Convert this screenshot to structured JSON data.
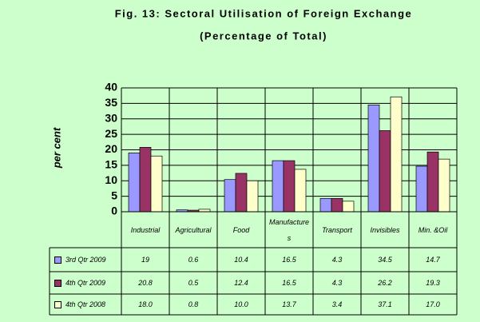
{
  "chart_data": {
    "type": "bar",
    "title": "Fig. 13: Sectoral Utilisation of Foreign Exchange",
    "subtitle": "(Percentage of Total)",
    "y_label": "per cent",
    "categories": [
      "Industrial",
      "Agricultural",
      "Food",
      "Manufactures",
      "Transport",
      "Invisibles",
      "Min. &Oil"
    ],
    "series": [
      {
        "name": "3rd Qtr 2009",
        "color": "#9999ff",
        "values": [
          19,
          0.6,
          10.4,
          16.5,
          4.3,
          34.5,
          14.7
        ]
      },
      {
        "name": "4th Qtr 2009",
        "color": "#993366",
        "values": [
          20.8,
          0.5,
          12.4,
          16.5,
          4.3,
          26.2,
          19.3
        ]
      },
      {
        "name": "4th Qtr 2008",
        "color": "#ffffcc",
        "values": [
          18,
          0.8,
          10,
          13.7,
          3.4,
          37.1,
          17
        ],
        "value_labels": [
          "18.0",
          "0.8",
          "10.0",
          "13.7",
          "3.4",
          "37.1",
          "17.0"
        ]
      }
    ],
    "ylim": [
      0,
      40
    ],
    "yticks": [
      0,
      5,
      10,
      15,
      20,
      25,
      30,
      35,
      40
    ],
    "grid": true
  }
}
